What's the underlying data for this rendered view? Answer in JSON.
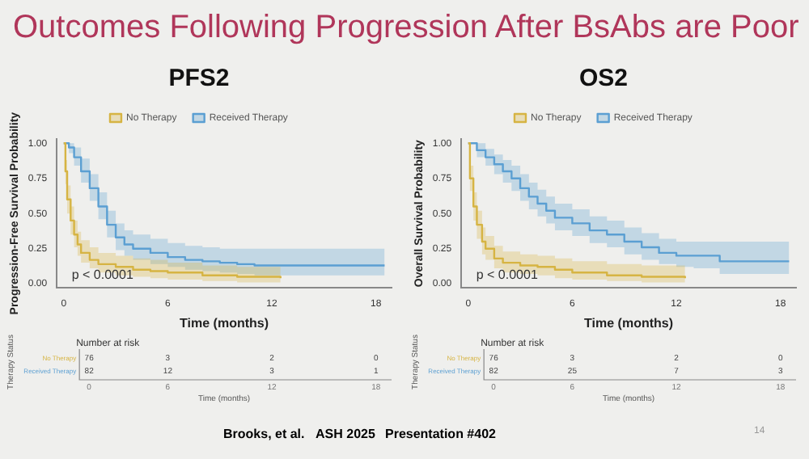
{
  "chart_data": [
    {
      "type": "other",
      "title": "Outcomes Following Progression After BsAbs are Poor",
      "annotations": [
        "Brooks, et al.",
        "ASH 2025",
        "Presentation #402",
        "14"
      ]
    },
    {
      "type": "step",
      "title": "PFS2",
      "xlabel": "Time (months)",
      "ylabel": "Progression-Free Survival Probability",
      "legend": "top",
      "xlim": [
        -0.4,
        18.9
      ],
      "ylim": [
        -0.03,
        1.03
      ],
      "xticks": [
        0,
        6,
        12,
        18
      ],
      "yticks": [
        {
          "value": 0,
          "label": "0.00"
        },
        {
          "value": 0.25,
          "label": "0.25"
        },
        {
          "value": 0.5,
          "label": "0.50"
        },
        {
          "value": 0.75,
          "label": "0.75"
        },
        {
          "value": 1,
          "label": "1.00"
        }
      ],
      "grid": false,
      "series": [
        {
          "name": "No Therapy",
          "color": "#d6b443",
          "x": [
            0,
            0.1,
            0.2,
            0.4,
            0.6,
            0.8,
            1,
            1.5,
            2,
            3,
            4,
            5,
            6,
            8,
            10,
            12.5
          ],
          "values": [
            1,
            0.8,
            0.6,
            0.45,
            0.35,
            0.28,
            0.22,
            0.17,
            0.14,
            0.12,
            0.1,
            0.09,
            0.08,
            0.06,
            0.05,
            0.04
          ],
          "lower": [
            1,
            0.71,
            0.5,
            0.35,
            0.26,
            0.2,
            0.15,
            0.11,
            0.08,
            0.06,
            0.05,
            0.04,
            0.03,
            0.02,
            0.01,
            0.01
          ],
          "upper": [
            1,
            0.88,
            0.7,
            0.55,
            0.45,
            0.37,
            0.31,
            0.26,
            0.22,
            0.2,
            0.18,
            0.17,
            0.15,
            0.13,
            0.12,
            0.1
          ]
        },
        {
          "name": "Received Therapy",
          "color": "#5b9fd2",
          "x": [
            0,
            0.3,
            0.6,
            1,
            1.5,
            2,
            2.5,
            3,
            3.5,
            4,
            5,
            6,
            7,
            8,
            9,
            10,
            11,
            18.5
          ],
          "values": [
            1,
            0.97,
            0.9,
            0.8,
            0.68,
            0.55,
            0.42,
            0.33,
            0.28,
            0.25,
            0.22,
            0.19,
            0.17,
            0.16,
            0.15,
            0.14,
            0.13,
            0.13
          ],
          "lower": [
            1,
            0.93,
            0.84,
            0.72,
            0.59,
            0.46,
            0.33,
            0.24,
            0.2,
            0.17,
            0.14,
            0.12,
            0.1,
            0.09,
            0.08,
            0.07,
            0.06,
            0.06
          ],
          "upper": [
            1,
            1,
            0.97,
            0.89,
            0.78,
            0.65,
            0.52,
            0.43,
            0.38,
            0.35,
            0.32,
            0.29,
            0.27,
            0.26,
            0.25,
            0.25,
            0.25,
            0.25
          ]
        }
      ],
      "annotations": [
        "p < 0.0001",
        "Number at risk",
        "Therapy Status",
        "Time (months)",
        "0",
        "6",
        "12",
        "18",
        "76",
        "3",
        "2",
        "0",
        "82",
        "12",
        "3",
        "1"
      ]
    },
    {
      "type": "step",
      "title": "OS2",
      "xlabel": "Time (months)",
      "ylabel": "Overall Survival Probability",
      "legend": "top",
      "xlim": [
        -0.4,
        18.9
      ],
      "ylim": [
        -0.03,
        1.03
      ],
      "xticks": [
        0,
        6,
        12,
        18
      ],
      "yticks": [
        {
          "value": 0,
          "label": "0.00"
        },
        {
          "value": 0.25,
          "label": "0.25"
        },
        {
          "value": 0.5,
          "label": "0.50"
        },
        {
          "value": 0.75,
          "label": "0.75"
        },
        {
          "value": 1,
          "label": "1.00"
        }
      ],
      "grid": false,
      "series": [
        {
          "name": "No Therapy",
          "color": "#d6b443",
          "x": [
            0,
            0.1,
            0.3,
            0.5,
            0.8,
            1,
            1.5,
            2,
            3,
            4,
            5,
            6,
            8,
            10,
            12.5
          ],
          "values": [
            1,
            0.75,
            0.55,
            0.42,
            0.3,
            0.25,
            0.18,
            0.15,
            0.13,
            0.12,
            0.1,
            0.08,
            0.06,
            0.05,
            0.04
          ],
          "lower": [
            1,
            0.66,
            0.45,
            0.32,
            0.21,
            0.17,
            0.11,
            0.08,
            0.07,
            0.06,
            0.04,
            0.03,
            0.02,
            0.01,
            0.01
          ],
          "upper": [
            1,
            0.84,
            0.65,
            0.52,
            0.4,
            0.34,
            0.27,
            0.23,
            0.21,
            0.2,
            0.18,
            0.16,
            0.14,
            0.13,
            0.11
          ]
        },
        {
          "name": "Received Therapy",
          "color": "#5b9fd2",
          "x": [
            0,
            0.5,
            1,
            1.5,
            2,
            2.5,
            3,
            3.5,
            4,
            4.5,
            5,
            6,
            7,
            8,
            9,
            10,
            11,
            12,
            13,
            14.5,
            18.5
          ],
          "values": [
            1,
            0.95,
            0.9,
            0.85,
            0.8,
            0.75,
            0.68,
            0.62,
            0.57,
            0.52,
            0.47,
            0.43,
            0.38,
            0.35,
            0.3,
            0.26,
            0.22,
            0.2,
            0.2,
            0.16,
            0.16
          ],
          "lower": [
            1,
            0.9,
            0.84,
            0.78,
            0.72,
            0.66,
            0.59,
            0.53,
            0.48,
            0.43,
            0.38,
            0.34,
            0.29,
            0.26,
            0.21,
            0.17,
            0.14,
            0.12,
            0.11,
            0.07,
            0.07
          ],
          "upper": [
            1,
            1,
            0.96,
            0.92,
            0.88,
            0.84,
            0.78,
            0.72,
            0.67,
            0.62,
            0.57,
            0.53,
            0.48,
            0.45,
            0.4,
            0.36,
            0.32,
            0.3,
            0.3,
            0.3,
            0.3
          ]
        }
      ],
      "annotations": [
        "p < 0.0001",
        "Number at risk",
        "Therapy Status",
        "Time (months)",
        "0",
        "6",
        "12",
        "18",
        "76",
        "3",
        "2",
        "0",
        "82",
        "25",
        "7",
        "3"
      ]
    }
  ]
}
